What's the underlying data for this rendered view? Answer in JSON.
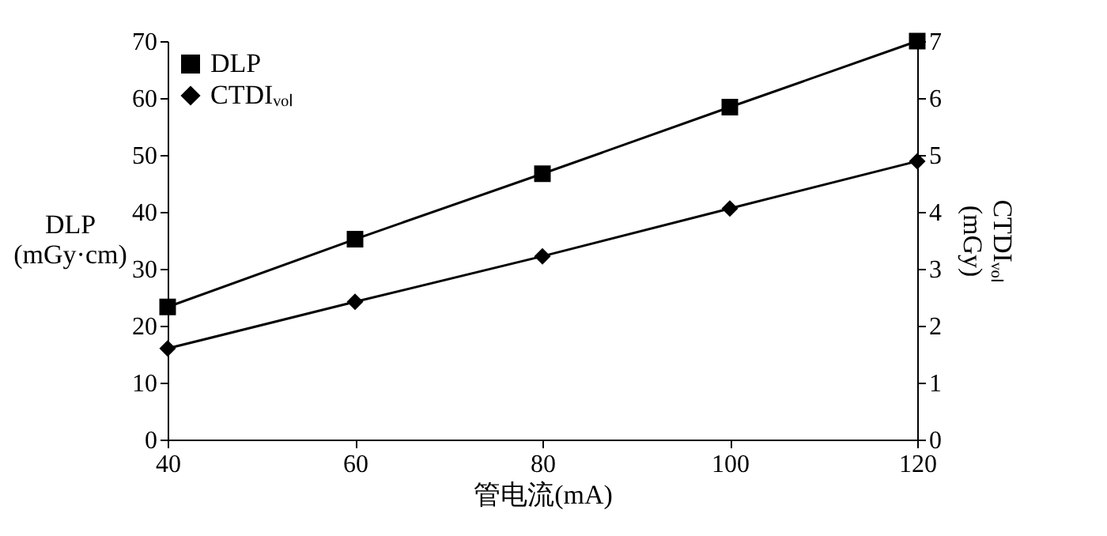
{
  "chart_data": {
    "type": "line",
    "xlabel": "管电流(mA)",
    "ylabel": "DLP\n(mGy·cm)",
    "y2label": "CTDIᵥₒₗ\n(mGy)",
    "x": [
      40,
      60,
      80,
      100,
      120
    ],
    "series": [
      {
        "name": "DLP",
        "color": "#000000",
        "marker": "square",
        "values": [
          23.3,
          35.2,
          46.7,
          58.4,
          70
        ]
      },
      {
        "name": "CTDIᵥₒₗ",
        "color": "#000000",
        "marker": "diamond",
        "axis": "y2",
        "values": [
          1.6,
          2.42,
          3.22,
          4.06,
          4.89
        ]
      }
    ],
    "xlim": [
      40,
      120
    ],
    "xticks": [
      40,
      60,
      80,
      100,
      120
    ],
    "ylim": [
      0,
      70
    ],
    "yticks": [
      0,
      10,
      20,
      30,
      40,
      50,
      60,
      70
    ],
    "y2lim": [
      0,
      7
    ],
    "y2ticks": [
      0,
      1,
      2,
      3,
      4,
      5,
      6,
      7
    ],
    "legend": "top left",
    "line_style": "solid"
  }
}
